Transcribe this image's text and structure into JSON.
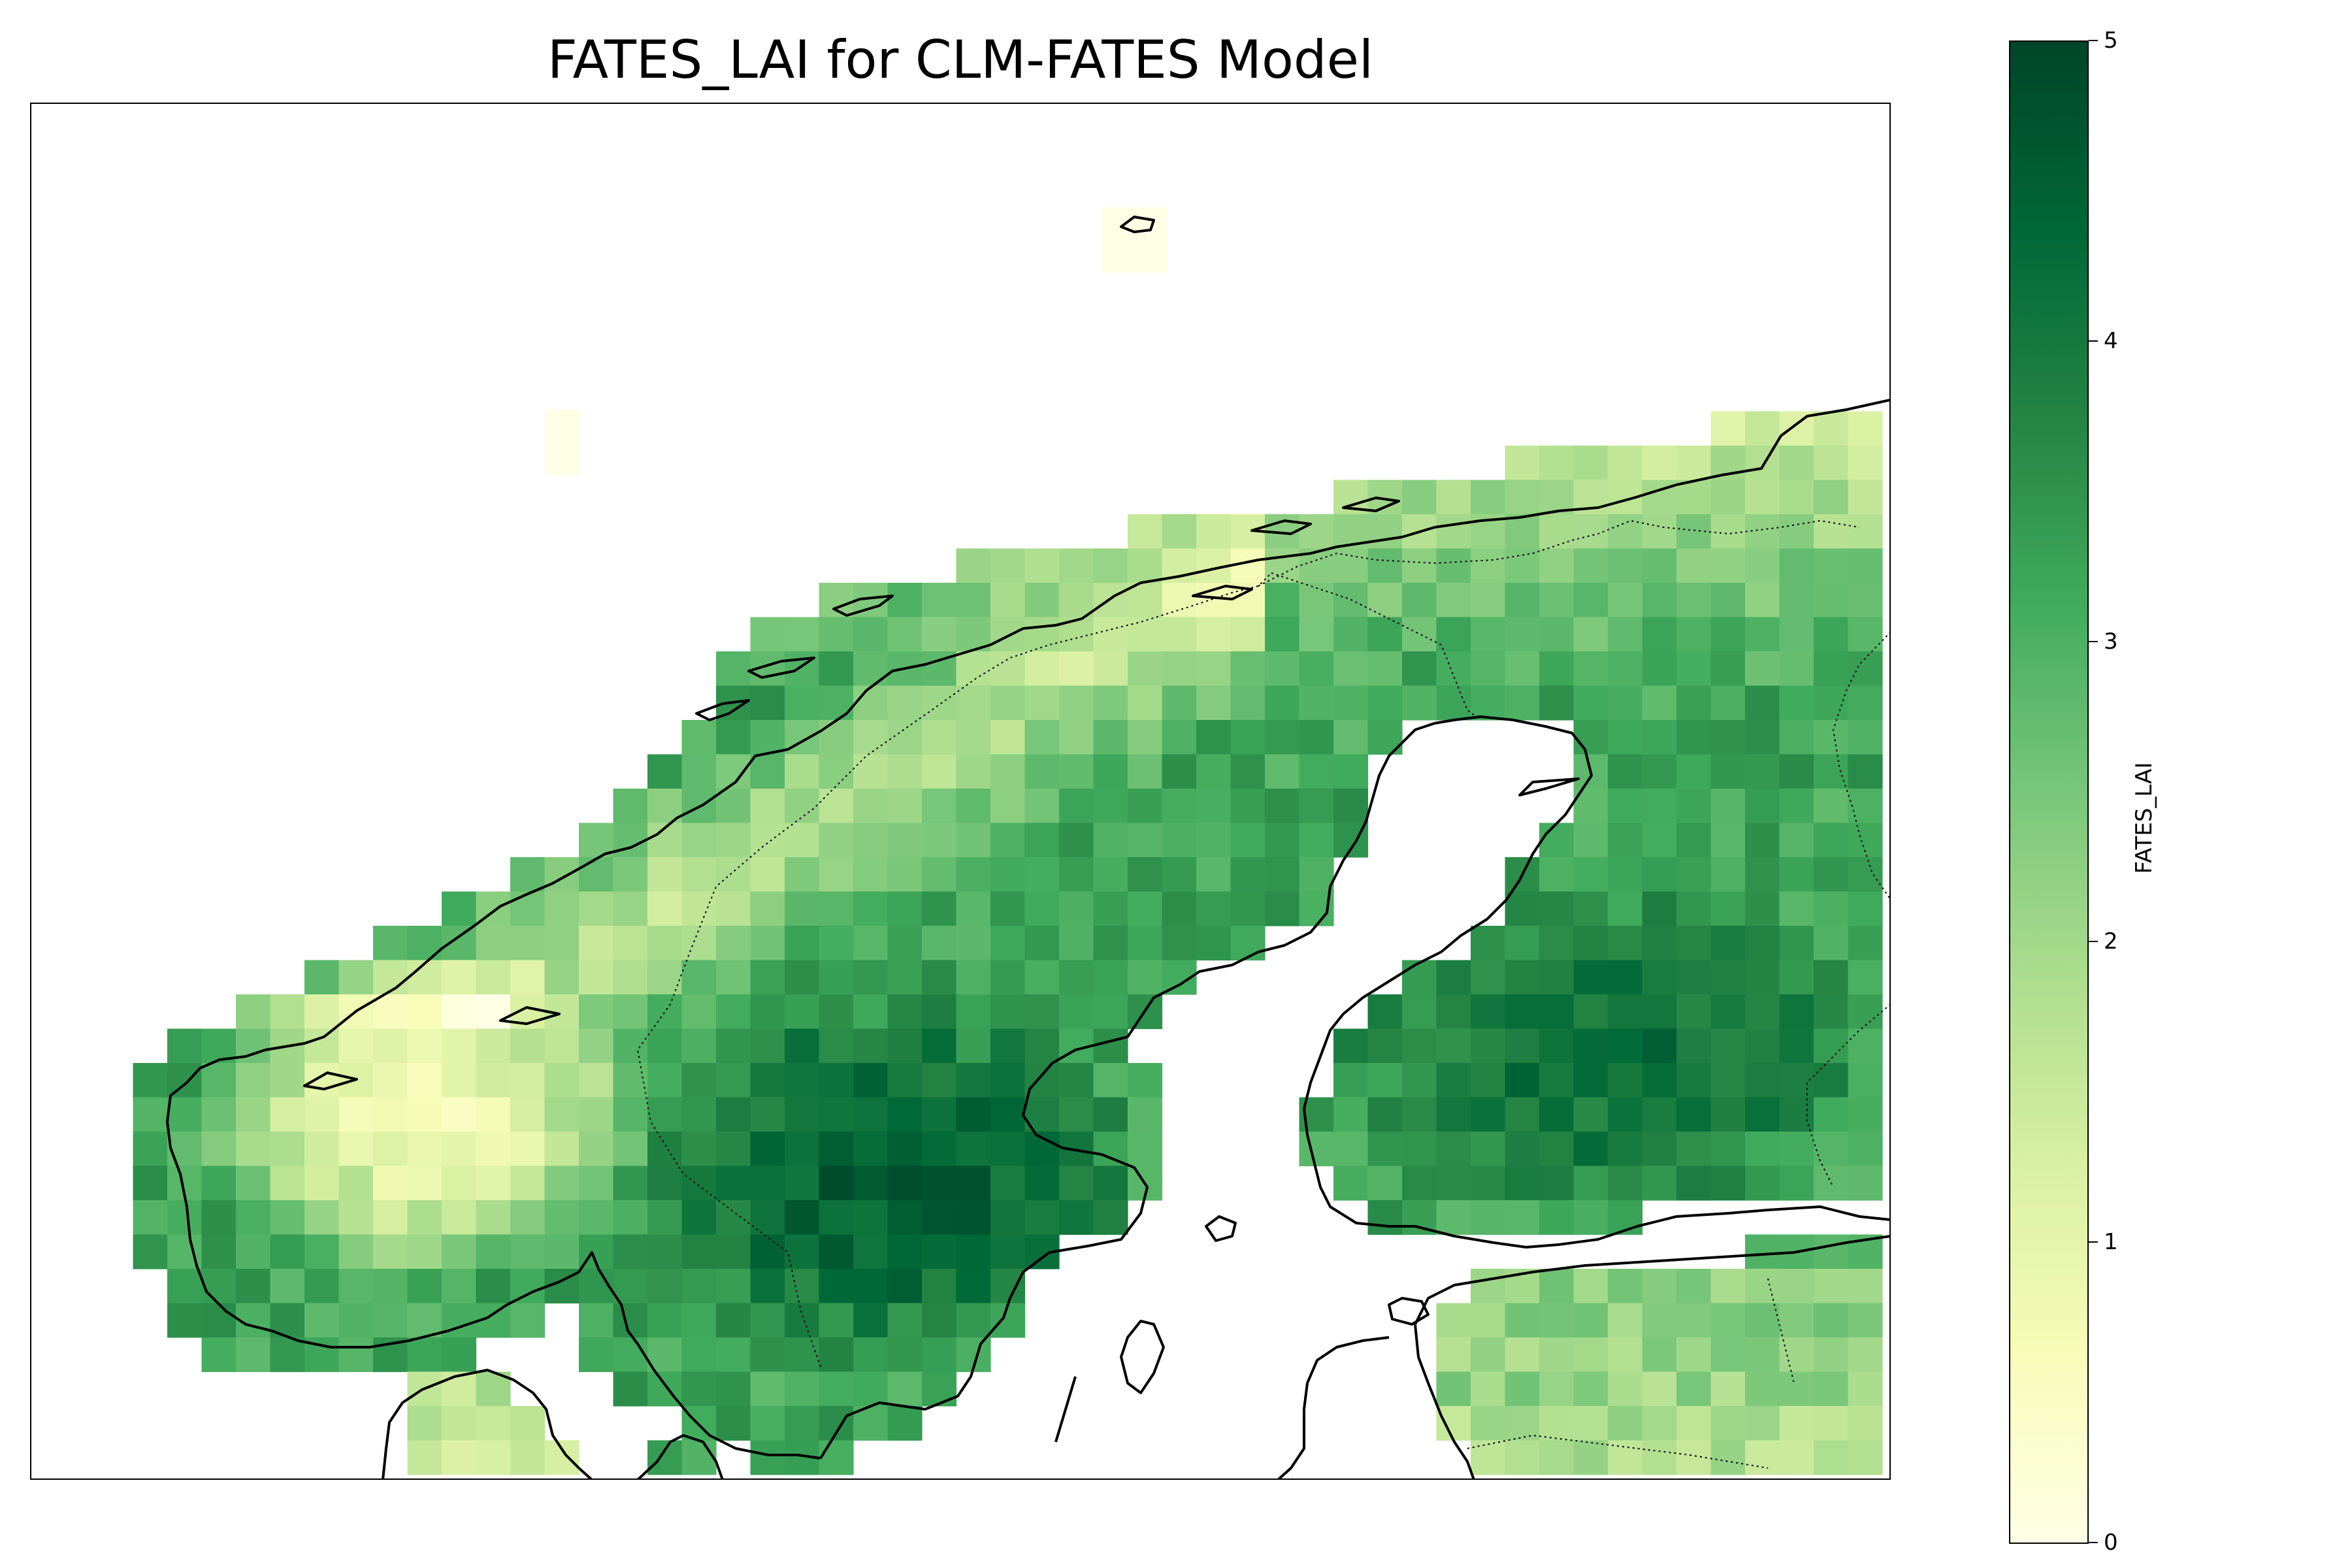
{
  "title": "FATES_LAI for CLM-FATES Model",
  "colorbar": {
    "label": "FATES_LAI",
    "ticks": [
      "0",
      "1",
      "2",
      "3",
      "4",
      "5"
    ],
    "vmin": 0,
    "vmax": 5,
    "colormap": "YlGn",
    "colors": [
      "#ffffe5",
      "#f7fcb9",
      "#d9f0a3",
      "#addd8e",
      "#78c679",
      "#41ab5d",
      "#238443",
      "#006837",
      "#004529"
    ]
  },
  "map": {
    "region": "Scandinavia and Baltic",
    "variable": "FATES_LAI",
    "features": [
      "coastlines",
      "country-borders"
    ],
    "grid": "off"
  }
}
